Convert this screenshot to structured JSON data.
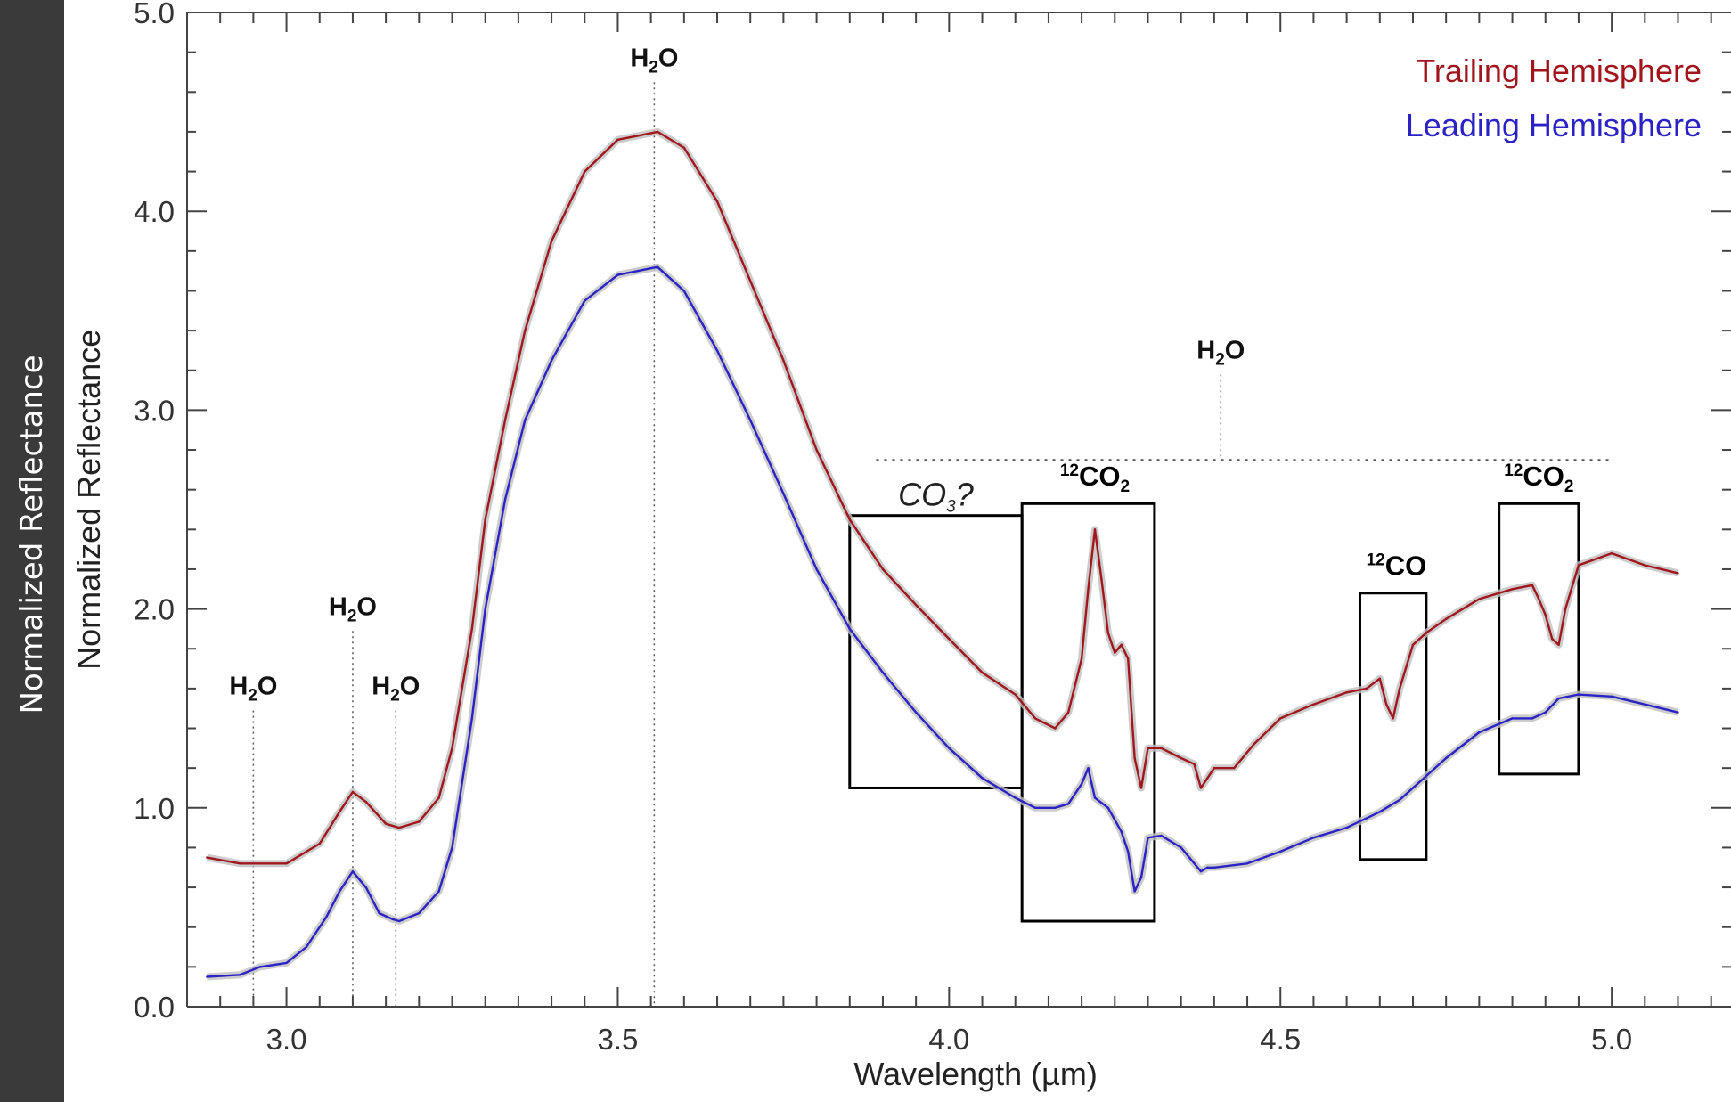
{
  "left_bar": {
    "label": "Normalized Reflectance"
  },
  "chart_data": {
    "type": "line",
    "xlabel": "Wavelength (µm)",
    "ylabel": "Normalized Reflectance",
    "xlim": [
      2.85,
      5.18
    ],
    "ylim": [
      0.0,
      5.0
    ],
    "x_ticks": [
      "3.0",
      "3.5",
      "4.0",
      "4.5",
      "5.0"
    ],
    "x_tick_values": [
      3.0,
      3.5,
      4.0,
      4.5,
      5.0
    ],
    "y_ticks": [
      "0.0",
      "1.0",
      "2.0",
      "3.0",
      "4.0",
      "5.0"
    ],
    "y_tick_values": [
      0.0,
      1.0,
      2.0,
      3.0,
      4.0,
      5.0
    ],
    "grid": false,
    "legend_position": "top-right",
    "series": [
      {
        "name": "Trailing Hemisphere",
        "color": "#a0161c",
        "x": [
          2.88,
          2.93,
          3.0,
          3.05,
          3.08,
          3.1,
          3.12,
          3.15,
          3.17,
          3.2,
          3.23,
          3.25,
          3.28,
          3.3,
          3.33,
          3.36,
          3.4,
          3.45,
          3.5,
          3.53,
          3.56,
          3.6,
          3.65,
          3.7,
          3.75,
          3.8,
          3.85,
          3.9,
          3.95,
          4.0,
          4.05,
          4.1,
          4.13,
          4.16,
          4.18,
          4.2,
          4.21,
          4.22,
          4.23,
          4.24,
          4.25,
          4.26,
          4.27,
          4.28,
          4.29,
          4.3,
          4.32,
          4.35,
          4.37,
          4.38,
          4.39,
          4.4,
          4.43,
          4.46,
          4.5,
          4.55,
          4.6,
          4.63,
          4.65,
          4.66,
          4.67,
          4.68,
          4.7,
          4.72,
          4.75,
          4.8,
          4.85,
          4.88,
          4.89,
          4.9,
          4.91,
          4.92,
          4.93,
          4.95,
          5.0,
          5.05,
          5.1
        ],
        "y": [
          0.75,
          0.72,
          0.72,
          0.82,
          0.98,
          1.08,
          1.03,
          0.92,
          0.9,
          0.93,
          1.05,
          1.3,
          1.9,
          2.45,
          2.95,
          3.4,
          3.85,
          4.2,
          4.36,
          4.38,
          4.4,
          4.32,
          4.05,
          3.65,
          3.25,
          2.8,
          2.45,
          2.2,
          2.02,
          1.85,
          1.68,
          1.57,
          1.45,
          1.4,
          1.48,
          1.75,
          2.1,
          2.4,
          2.15,
          1.88,
          1.78,
          1.82,
          1.75,
          1.25,
          1.1,
          1.3,
          1.3,
          1.25,
          1.22,
          1.1,
          1.15,
          1.2,
          1.2,
          1.32,
          1.45,
          1.52,
          1.58,
          1.6,
          1.65,
          1.52,
          1.45,
          1.6,
          1.82,
          1.88,
          1.95,
          2.05,
          2.1,
          2.12,
          2.05,
          1.97,
          1.85,
          1.82,
          2.0,
          2.22,
          2.28,
          2.22,
          2.18
        ]
      },
      {
        "name": "Leading Hemisphere",
        "color": "#2a22c4",
        "x": [
          2.88,
          2.93,
          2.96,
          3.0,
          3.03,
          3.06,
          3.08,
          3.1,
          3.12,
          3.14,
          3.16,
          3.17,
          3.2,
          3.23,
          3.25,
          3.28,
          3.3,
          3.33,
          3.36,
          3.4,
          3.45,
          3.5,
          3.53,
          3.56,
          3.6,
          3.65,
          3.7,
          3.75,
          3.8,
          3.85,
          3.9,
          3.95,
          4.0,
          4.05,
          4.1,
          4.13,
          4.16,
          4.18,
          4.2,
          4.21,
          4.22,
          4.24,
          4.26,
          4.27,
          4.28,
          4.29,
          4.3,
          4.32,
          4.35,
          4.38,
          4.39,
          4.4,
          4.45,
          4.5,
          4.55,
          4.6,
          4.65,
          4.68,
          4.7,
          4.75,
          4.8,
          4.85,
          4.88,
          4.9,
          4.92,
          4.95,
          5.0,
          5.05,
          5.1
        ],
        "y": [
          0.15,
          0.16,
          0.2,
          0.22,
          0.3,
          0.45,
          0.58,
          0.68,
          0.6,
          0.47,
          0.44,
          0.43,
          0.47,
          0.58,
          0.8,
          1.45,
          2.0,
          2.55,
          2.95,
          3.25,
          3.55,
          3.68,
          3.7,
          3.72,
          3.6,
          3.3,
          2.95,
          2.58,
          2.2,
          1.9,
          1.68,
          1.48,
          1.3,
          1.15,
          1.05,
          1.0,
          1.0,
          1.02,
          1.12,
          1.2,
          1.05,
          1.0,
          0.88,
          0.78,
          0.58,
          0.65,
          0.85,
          0.86,
          0.8,
          0.68,
          0.7,
          0.7,
          0.72,
          0.78,
          0.85,
          0.9,
          0.98,
          1.04,
          1.1,
          1.25,
          1.38,
          1.45,
          1.45,
          1.48,
          1.55,
          1.57,
          1.56,
          1.52,
          1.48
        ]
      }
    ],
    "annotations": {
      "molecules": [
        {
          "text_main": "H",
          "text_sub": "2",
          "text_end": "O",
          "x": 2.95,
          "y": 1.57,
          "line_to": 0.0
        },
        {
          "text_main": "H",
          "text_sub": "2",
          "text_end": "O",
          "x": 3.1,
          "y": 1.97,
          "line_to": 0.0
        },
        {
          "text_main": "H",
          "text_sub": "2",
          "text_end": "O",
          "x": 3.165,
          "y": 1.57,
          "line_to": 0.0
        },
        {
          "text_main": "H",
          "text_sub": "2",
          "text_end": "O",
          "x": 3.555,
          "y": 4.73,
          "line_to": 0.0
        },
        {
          "text_main": "H",
          "text_sub": "2",
          "text_end": "O",
          "x": 4.41,
          "y": 3.26,
          "line_to": 2.75
        }
      ],
      "h2o_band": {
        "x0": 3.89,
        "x1": 5.0,
        "y": 2.75
      },
      "boxes": [
        {
          "label": "CO3?",
          "x0": 3.85,
          "x1": 4.11,
          "y0": 1.1,
          "y1": 2.47
        },
        {
          "label": "12CO2",
          "x0": 4.11,
          "x1": 4.31,
          "y0": 0.43,
          "y1": 2.53
        },
        {
          "label": "12CO",
          "x0": 4.62,
          "x1": 4.72,
          "y0": 0.74,
          "y1": 2.08
        },
        {
          "label": "12CO2",
          "x0": 4.83,
          "x1": 4.95,
          "y0": 1.17,
          "y1": 2.53
        }
      ],
      "box_labels": {
        "co3": {
          "main": "CO",
          "sub": "3",
          "end": "?"
        },
        "co2_a": {
          "sup": "12",
          "main": "CO",
          "sub": "2"
        },
        "co": {
          "sup": "12",
          "main": "CO"
        },
        "co2_b": {
          "sup": "12",
          "main": "CO",
          "sub": "2"
        }
      }
    }
  }
}
